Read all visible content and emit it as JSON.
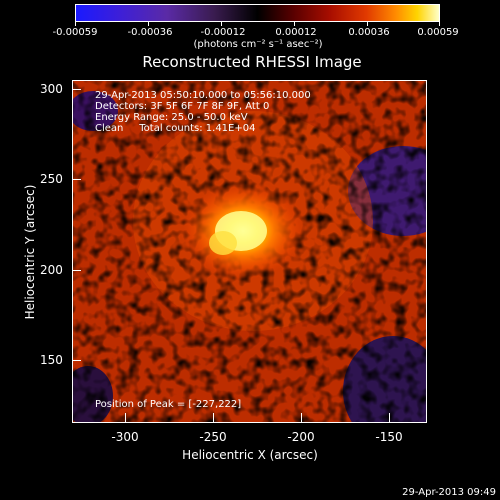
{
  "colorbar": {
    "ticks": [
      "-0.00059",
      "-0.00036",
      "-0.00012",
      "0.00012",
      "0.00036",
      "0.00059"
    ],
    "unit_label": "(photons cm⁻² s⁻¹ asec⁻²)"
  },
  "title": "Reconstructed RHESSI Image",
  "annotation": {
    "line1": "29-Apr-2013 05:50:10.000 to 05:56:10.000",
    "line2": "Detectors: 3F 5F 6F 7F 8F 9F, Att 0",
    "line3": "Energy Range: 25.0 - 50.0 keV",
    "line4": "Clean     Total counts: 1.41E+04",
    "peak": "Position of Peak = [-227,222]"
  },
  "axes": {
    "xlabel": "Heliocentric X (arcsec)",
    "ylabel": "Heliocentric Y (arcsec)",
    "xticks": [
      "-300",
      "-250",
      "-200",
      "-150"
    ],
    "yticks": [
      "300",
      "250",
      "200",
      "150"
    ]
  },
  "footer": {
    "timestamp": "29-Apr-2013 09:49"
  }
}
